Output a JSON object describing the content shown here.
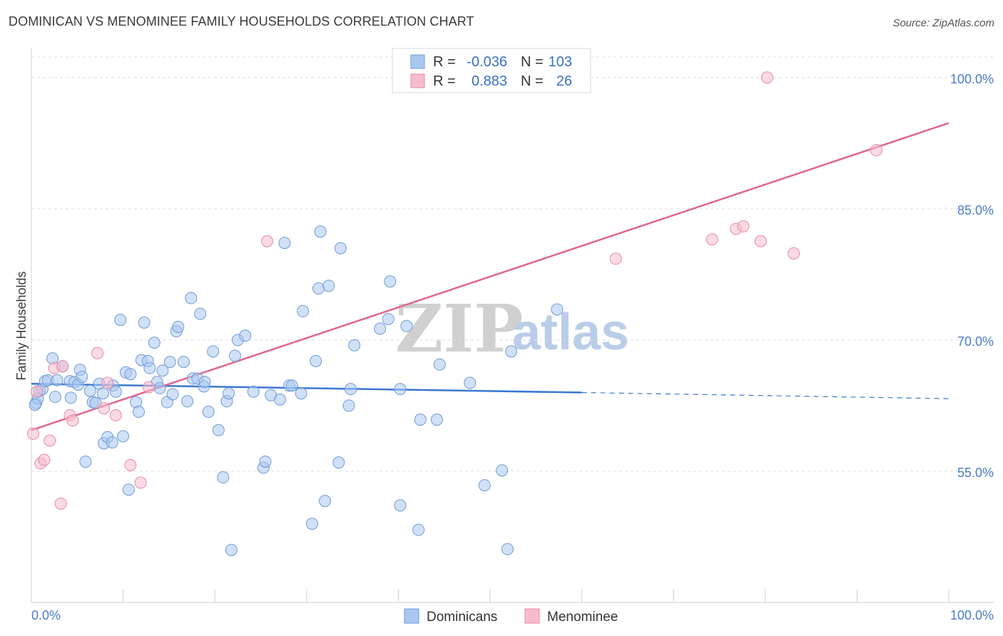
{
  "title": "DOMINICAN VS MENOMINEE FAMILY HOUSEHOLDS CORRELATION CHART",
  "source": "Source: ZipAtlas.com",
  "watermark": {
    "zip": "ZIP",
    "atlas": "atlas"
  },
  "legend": {
    "rows": [
      {
        "r_label": "R =",
        "r_value": "-0.036",
        "n_label": "N =",
        "n_value": "103",
        "color": "#a9c8f0"
      },
      {
        "r_label": "R =",
        "r_value": "0.883",
        "n_label": "N =",
        "n_value": "26",
        "color": "#f6bccc"
      }
    ]
  },
  "bottom_legend": {
    "items": [
      {
        "label": "Dominicans",
        "color": "#a9c8f0"
      },
      {
        "label": "Menominee",
        "color": "#f6bccc"
      }
    ]
  },
  "chart_data": {
    "type": "scatter",
    "title": "DOMINICAN VS MENOMINEE FAMILY HOUSEHOLDS CORRELATION CHART",
    "xlabel": "",
    "ylabel": "Family Households",
    "xlim": [
      0,
      100
    ],
    "ylim": [
      40,
      103
    ],
    "x_tick_labels": [
      "0.0%",
      "100.0%"
    ],
    "y_ticks": [
      55,
      70,
      85,
      100
    ],
    "y_tick_labels": [
      "55.0%",
      "70.0%",
      "85.0%",
      "100.0%"
    ],
    "series": [
      {
        "name": "Dominicans",
        "color": "#a9c8f0",
        "stroke": "#6f9ad6",
        "trend": {
          "x0": 0,
          "y0": 65.0,
          "x1": 60,
          "y1": 64.0,
          "dash_to_x": 100,
          "dash_to_y": 63.3,
          "color": "#3a78d0"
        },
        "points": [
          [
            0.5,
            62.8
          ],
          [
            0.7,
            63.3
          ],
          [
            0.9,
            64.2
          ],
          [
            1.2,
            64.4
          ],
          [
            1.5,
            65.3
          ],
          [
            1.8,
            65.4
          ],
          [
            2.3,
            67.9
          ],
          [
            2.6,
            63.5
          ],
          [
            2.8,
            65.4
          ],
          [
            3.4,
            67.0
          ],
          [
            4.2,
            65.3
          ],
          [
            4.3,
            63.4
          ],
          [
            4.7,
            65.2
          ],
          [
            5.1,
            64.9
          ],
          [
            5.3,
            66.6
          ],
          [
            5.5,
            65.8
          ],
          [
            5.9,
            56.1
          ],
          [
            6.4,
            64.2
          ],
          [
            6.7,
            62.9
          ],
          [
            7.0,
            62.8
          ],
          [
            7.4,
            65.0
          ],
          [
            7.8,
            63.9
          ],
          [
            7.9,
            58.2
          ],
          [
            8.3,
            58.9
          ],
          [
            8.8,
            58.3
          ],
          [
            8.9,
            64.8
          ],
          [
            9.2,
            64.1
          ],
          [
            9.7,
            72.3
          ],
          [
            10.0,
            59.0
          ],
          [
            10.3,
            66.3
          ],
          [
            10.6,
            52.9
          ],
          [
            10.8,
            66.1
          ],
          [
            11.4,
            62.9
          ],
          [
            11.7,
            61.8
          ],
          [
            12.0,
            67.7
          ],
          [
            12.3,
            72.0
          ],
          [
            12.7,
            67.6
          ],
          [
            12.9,
            66.8
          ],
          [
            13.4,
            69.7
          ],
          [
            13.7,
            65.2
          ],
          [
            14.0,
            64.5
          ],
          [
            14.3,
            66.5
          ],
          [
            14.8,
            62.9
          ],
          [
            15.1,
            67.5
          ],
          [
            15.4,
            63.8
          ],
          [
            15.8,
            71.0
          ],
          [
            16.0,
            71.5
          ],
          [
            16.6,
            67.5
          ],
          [
            17.0,
            63.0
          ],
          [
            17.4,
            74.8
          ],
          [
            17.6,
            65.6
          ],
          [
            18.1,
            65.6
          ],
          [
            18.4,
            73.0
          ],
          [
            18.8,
            64.7
          ],
          [
            18.9,
            65.2
          ],
          [
            19.3,
            61.8
          ],
          [
            19.8,
            68.7
          ],
          [
            20.4,
            59.7
          ],
          [
            20.9,
            54.3
          ],
          [
            21.3,
            63.0
          ],
          [
            21.5,
            63.9
          ],
          [
            21.8,
            46.0
          ],
          [
            22.2,
            68.2
          ],
          [
            22.5,
            70.0
          ],
          [
            23.3,
            70.5
          ],
          [
            24.2,
            64.1
          ],
          [
            25.3,
            55.4
          ],
          [
            25.5,
            56.1
          ],
          [
            26.1,
            63.7
          ],
          [
            27.1,
            63.2
          ],
          [
            27.6,
            81.1
          ],
          [
            28.1,
            64.8
          ],
          [
            28.4,
            64.8
          ],
          [
            29.4,
            63.9
          ],
          [
            29.6,
            73.3
          ],
          [
            30.6,
            49.0
          ],
          [
            31.0,
            67.6
          ],
          [
            31.3,
            75.9
          ],
          [
            31.5,
            82.4
          ],
          [
            32.0,
            51.6
          ],
          [
            32.4,
            76.2
          ],
          [
            33.5,
            56.0
          ],
          [
            33.7,
            80.5
          ],
          [
            34.6,
            62.5
          ],
          [
            34.8,
            64.4
          ],
          [
            35.2,
            69.4
          ],
          [
            38.0,
            71.3
          ],
          [
            38.9,
            72.4
          ],
          [
            39.1,
            76.7
          ],
          [
            40.2,
            64.4
          ],
          [
            40.2,
            51.1
          ],
          [
            40.9,
            71.6
          ],
          [
            42.2,
            48.3
          ],
          [
            42.4,
            60.9
          ],
          [
            44.2,
            60.9
          ],
          [
            44.5,
            67.2
          ],
          [
            47.8,
            65.1
          ],
          [
            49.4,
            53.4
          ],
          [
            51.3,
            55.1
          ],
          [
            51.9,
            46.1
          ],
          [
            52.3,
            68.7
          ],
          [
            57.3,
            73.5
          ],
          [
            0.4,
            62.6
          ]
        ]
      },
      {
        "name": "Menominee",
        "color": "#f6bccc",
        "stroke": "#e58aa5",
        "trend": {
          "x0": 0,
          "y0": 59.7,
          "x1": 100,
          "y1": 94.8,
          "color": "#e0668f"
        },
        "points": [
          [
            0.2,
            59.3
          ],
          [
            0.6,
            64.1
          ],
          [
            1.0,
            55.9
          ],
          [
            1.4,
            56.3
          ],
          [
            2.0,
            58.5
          ],
          [
            2.5,
            66.8
          ],
          [
            3.2,
            51.3
          ],
          [
            3.4,
            67.0
          ],
          [
            4.2,
            61.4
          ],
          [
            4.5,
            60.8
          ],
          [
            7.2,
            68.5
          ],
          [
            7.9,
            62.2
          ],
          [
            8.3,
            65.1
          ],
          [
            9.2,
            61.4
          ],
          [
            10.8,
            55.7
          ],
          [
            11.9,
            53.7
          ],
          [
            12.8,
            64.6
          ],
          [
            25.7,
            81.3
          ],
          [
            63.7,
            79.3
          ],
          [
            74.2,
            81.5
          ],
          [
            76.8,
            82.7
          ],
          [
            77.6,
            83.0
          ],
          [
            79.5,
            81.3
          ],
          [
            80.2,
            100.0
          ],
          [
            83.1,
            79.9
          ],
          [
            92.1,
            91.7
          ]
        ]
      }
    ]
  }
}
